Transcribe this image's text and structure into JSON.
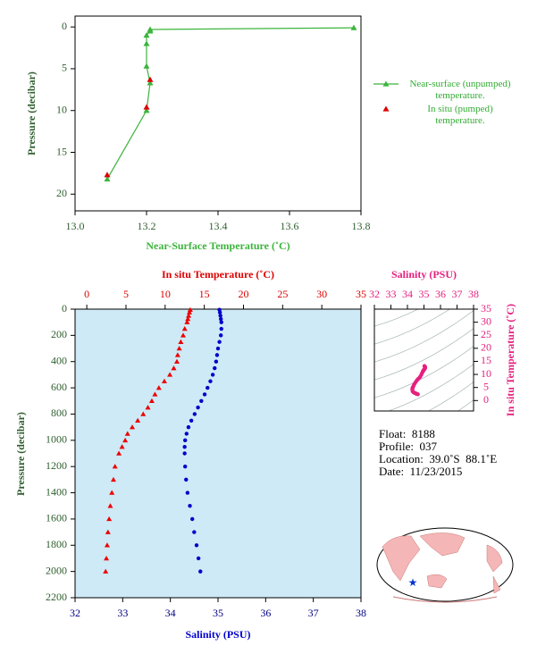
{
  "chart_data": [
    {
      "type": "line",
      "x_label": "Near-Surface Temperature (˚C)",
      "y_label": "Pressure (decibar)",
      "xlim": [
        13.0,
        13.8
      ],
      "xticks": [
        {
          "value": 13.0,
          "label": "13.0"
        },
        {
          "value": 13.2,
          "label": "13.2"
        },
        {
          "value": 13.4,
          "label": "13.4"
        },
        {
          "value": 13.6,
          "label": "13.6"
        },
        {
          "value": 13.8,
          "label": "13.8"
        }
      ],
      "ylim": [
        -1.3,
        22
      ],
      "y_inverted": true,
      "yticks": [
        0,
        5,
        10,
        15,
        20
      ],
      "series": [
        {
          "name": "Near-surface (unpumped) temperature.",
          "color": "#3cb43c",
          "line": true,
          "pressure": [
            0.1,
            0.3,
            0.5,
            1,
            2,
            4.7,
            6.7,
            10.0,
            18.2
          ],
          "values": [
            13.78,
            13.21,
            13.21,
            13.2,
            13.2,
            13.2,
            13.21,
            13.2,
            13.09
          ]
        },
        {
          "name": "In situ (pumped) temperature.",
          "color": "#dd0000",
          "line": false,
          "pressure": [
            6.3,
            9.6,
            17.7
          ],
          "values": [
            13.21,
            13.2,
            13.09
          ]
        }
      ]
    },
    {
      "type": "profile",
      "y_label": "Pressure (decibar)",
      "ylim": [
        0,
        2200
      ],
      "y_inverted": true,
      "yticks": [
        0,
        200,
        400,
        600,
        800,
        1000,
        1200,
        1400,
        1600,
        1800,
        2000,
        2200
      ],
      "x_label": "Salinity (PSU)",
      "xlim": [
        32,
        38
      ],
      "xticks": [
        32,
        33,
        34,
        35,
        36,
        37,
        38
      ],
      "x2_label": "In situ Temperature (˚C)",
      "x2lim": [
        -1.5,
        35
      ],
      "x2ticks": [
        0,
        5,
        10,
        15,
        20,
        25,
        30,
        35
      ],
      "background": "#cdeaf6",
      "pressure": [
        5,
        25,
        50,
        75,
        100,
        150,
        200,
        250,
        300,
        350,
        400,
        450,
        500,
        550,
        600,
        650,
        700,
        750,
        800,
        850,
        900,
        950,
        1000,
        1050,
        1100,
        1200,
        1300,
        1400,
        1500,
        1600,
        1700,
        1800,
        1900,
        2000
      ],
      "series": [
        {
          "color": "#ee0000",
          "marker": "triangle",
          "axis": "x2",
          "values": [
            13.2,
            13.1,
            13.0,
            12.9,
            12.8,
            12.5,
            12.3,
            12.0,
            11.8,
            11.6,
            11.5,
            11.1,
            10.6,
            9.9,
            9.2,
            8.7,
            8.3,
            7.8,
            7.2,
            6.5,
            5.8,
            5.2,
            4.9,
            4.5,
            4.1,
            3.6,
            3.4,
            3.2,
            3.0,
            2.85,
            2.7,
            2.6,
            2.5,
            2.4
          ]
        },
        {
          "color": "#0000cc",
          "marker": "circle",
          "axis": "x",
          "values": [
            35.03,
            35.04,
            35.05,
            35.06,
            35.07,
            35.07,
            35.06,
            35.03,
            35.0,
            34.98,
            34.96,
            34.93,
            34.89,
            34.84,
            34.78,
            34.72,
            34.65,
            34.58,
            34.51,
            34.44,
            34.38,
            34.34,
            34.31,
            34.3,
            34.3,
            34.31,
            34.33,
            34.36,
            34.41,
            34.46,
            34.5,
            34.55,
            34.59,
            34.63
          ]
        }
      ]
    },
    {
      "type": "ts",
      "title": "Salinity (PSU)",
      "y_label": "In situ Temperature (˚C)",
      "xlim": [
        32,
        38
      ],
      "xticks": [
        32,
        33,
        34,
        35,
        36,
        37,
        38
      ],
      "ylim": [
        -4,
        35
      ],
      "yticks": [
        0,
        5,
        10,
        15,
        20,
        25,
        30,
        35
      ],
      "color": "#e6207f"
    }
  ],
  "info": {
    "float": "Float:  8188",
    "profile": "Profile:  037",
    "location": "Location:  39.0˚S  88.1˚E",
    "date": "Date:  11/23/2015"
  }
}
